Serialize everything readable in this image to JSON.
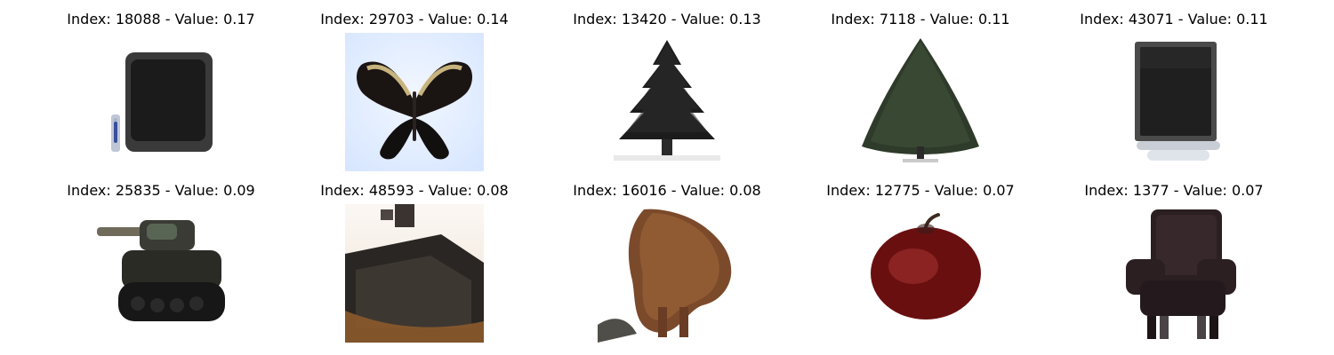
{
  "grid": {
    "items": [
      {
        "title": "Index: 18088 - Value: 0.17"
      },
      {
        "title": "Index: 29703 - Value: 0.14"
      },
      {
        "title": "Index: 13420 - Value: 0.13"
      },
      {
        "title": "Index: 7118 - Value: 0.11"
      },
      {
        "title": "Index: 43071 - Value: 0.11"
      },
      {
        "title": "Index: 25835 - Value: 0.09"
      },
      {
        "title": "Index: 48593 - Value: 0.08"
      },
      {
        "title": "Index: 16016 - Value: 0.08"
      },
      {
        "title": "Index: 12775 - Value: 0.07"
      },
      {
        "title": "Index: 1377 - Value: 0.07"
      }
    ]
  }
}
